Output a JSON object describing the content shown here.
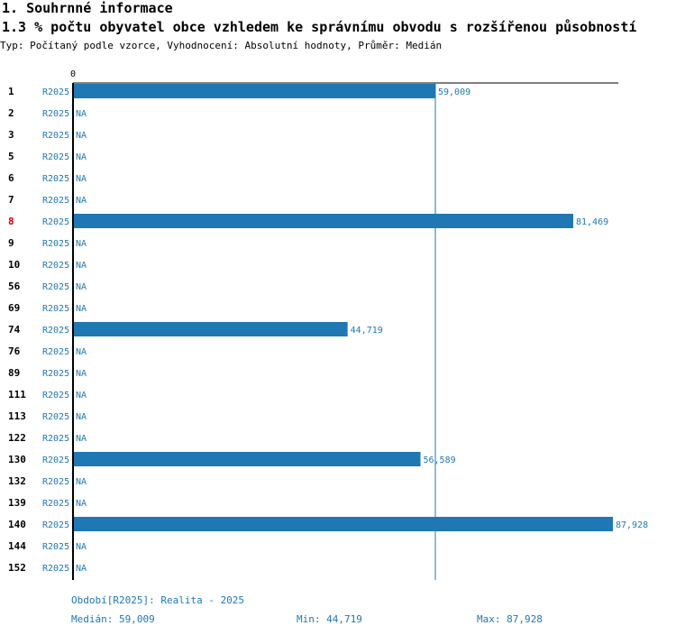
{
  "section_title": "1. Souhrnné informace",
  "chart_title": "1.3 % počtu obyvatel obce vzhledem ke správnímu obvodu s rozšířenou působností",
  "meta_line": "Typ: Počítaný podle vzorce, Vyhodnocení: Absolutní hodnoty, Průměr: Medián",
  "colors": {
    "bar": "#1f77b4",
    "highlight": "#cc0000",
    "axis": "#000000",
    "text": "#000000"
  },
  "chart_data": {
    "type": "bar",
    "orientation": "horizontal",
    "axis_origin_label": "0",
    "period_label": "R2025",
    "na_label": "NA",
    "categories": [
      "1",
      "2",
      "3",
      "5",
      "6",
      "7",
      "8",
      "9",
      "10",
      "56",
      "69",
      "74",
      "76",
      "89",
      "111",
      "113",
      "122",
      "130",
      "132",
      "139",
      "140",
      "144",
      "152"
    ],
    "values": [
      59.009,
      null,
      null,
      null,
      null,
      null,
      81.469,
      null,
      null,
      null,
      null,
      44.719,
      null,
      null,
      null,
      null,
      null,
      56.589,
      null,
      null,
      87.928,
      null,
      null
    ],
    "value_labels": [
      "59,009",
      "NA",
      "NA",
      "NA",
      "NA",
      "NA",
      "81,469",
      "NA",
      "NA",
      "NA",
      "NA",
      "44,719",
      "NA",
      "NA",
      "NA",
      "NA",
      "NA",
      "56,589",
      "NA",
      "NA",
      "87,928",
      "NA",
      "NA"
    ],
    "highlighted_category": "8",
    "median": 59.009,
    "xlim": [
      0,
      87.928
    ],
    "grid": false,
    "legend": "none"
  },
  "footer": {
    "period": "Období[R2025]: Realita - 2025",
    "median": "Medián: 59,009",
    "min": "Min: 44,719",
    "max": "Max: 87,928"
  }
}
